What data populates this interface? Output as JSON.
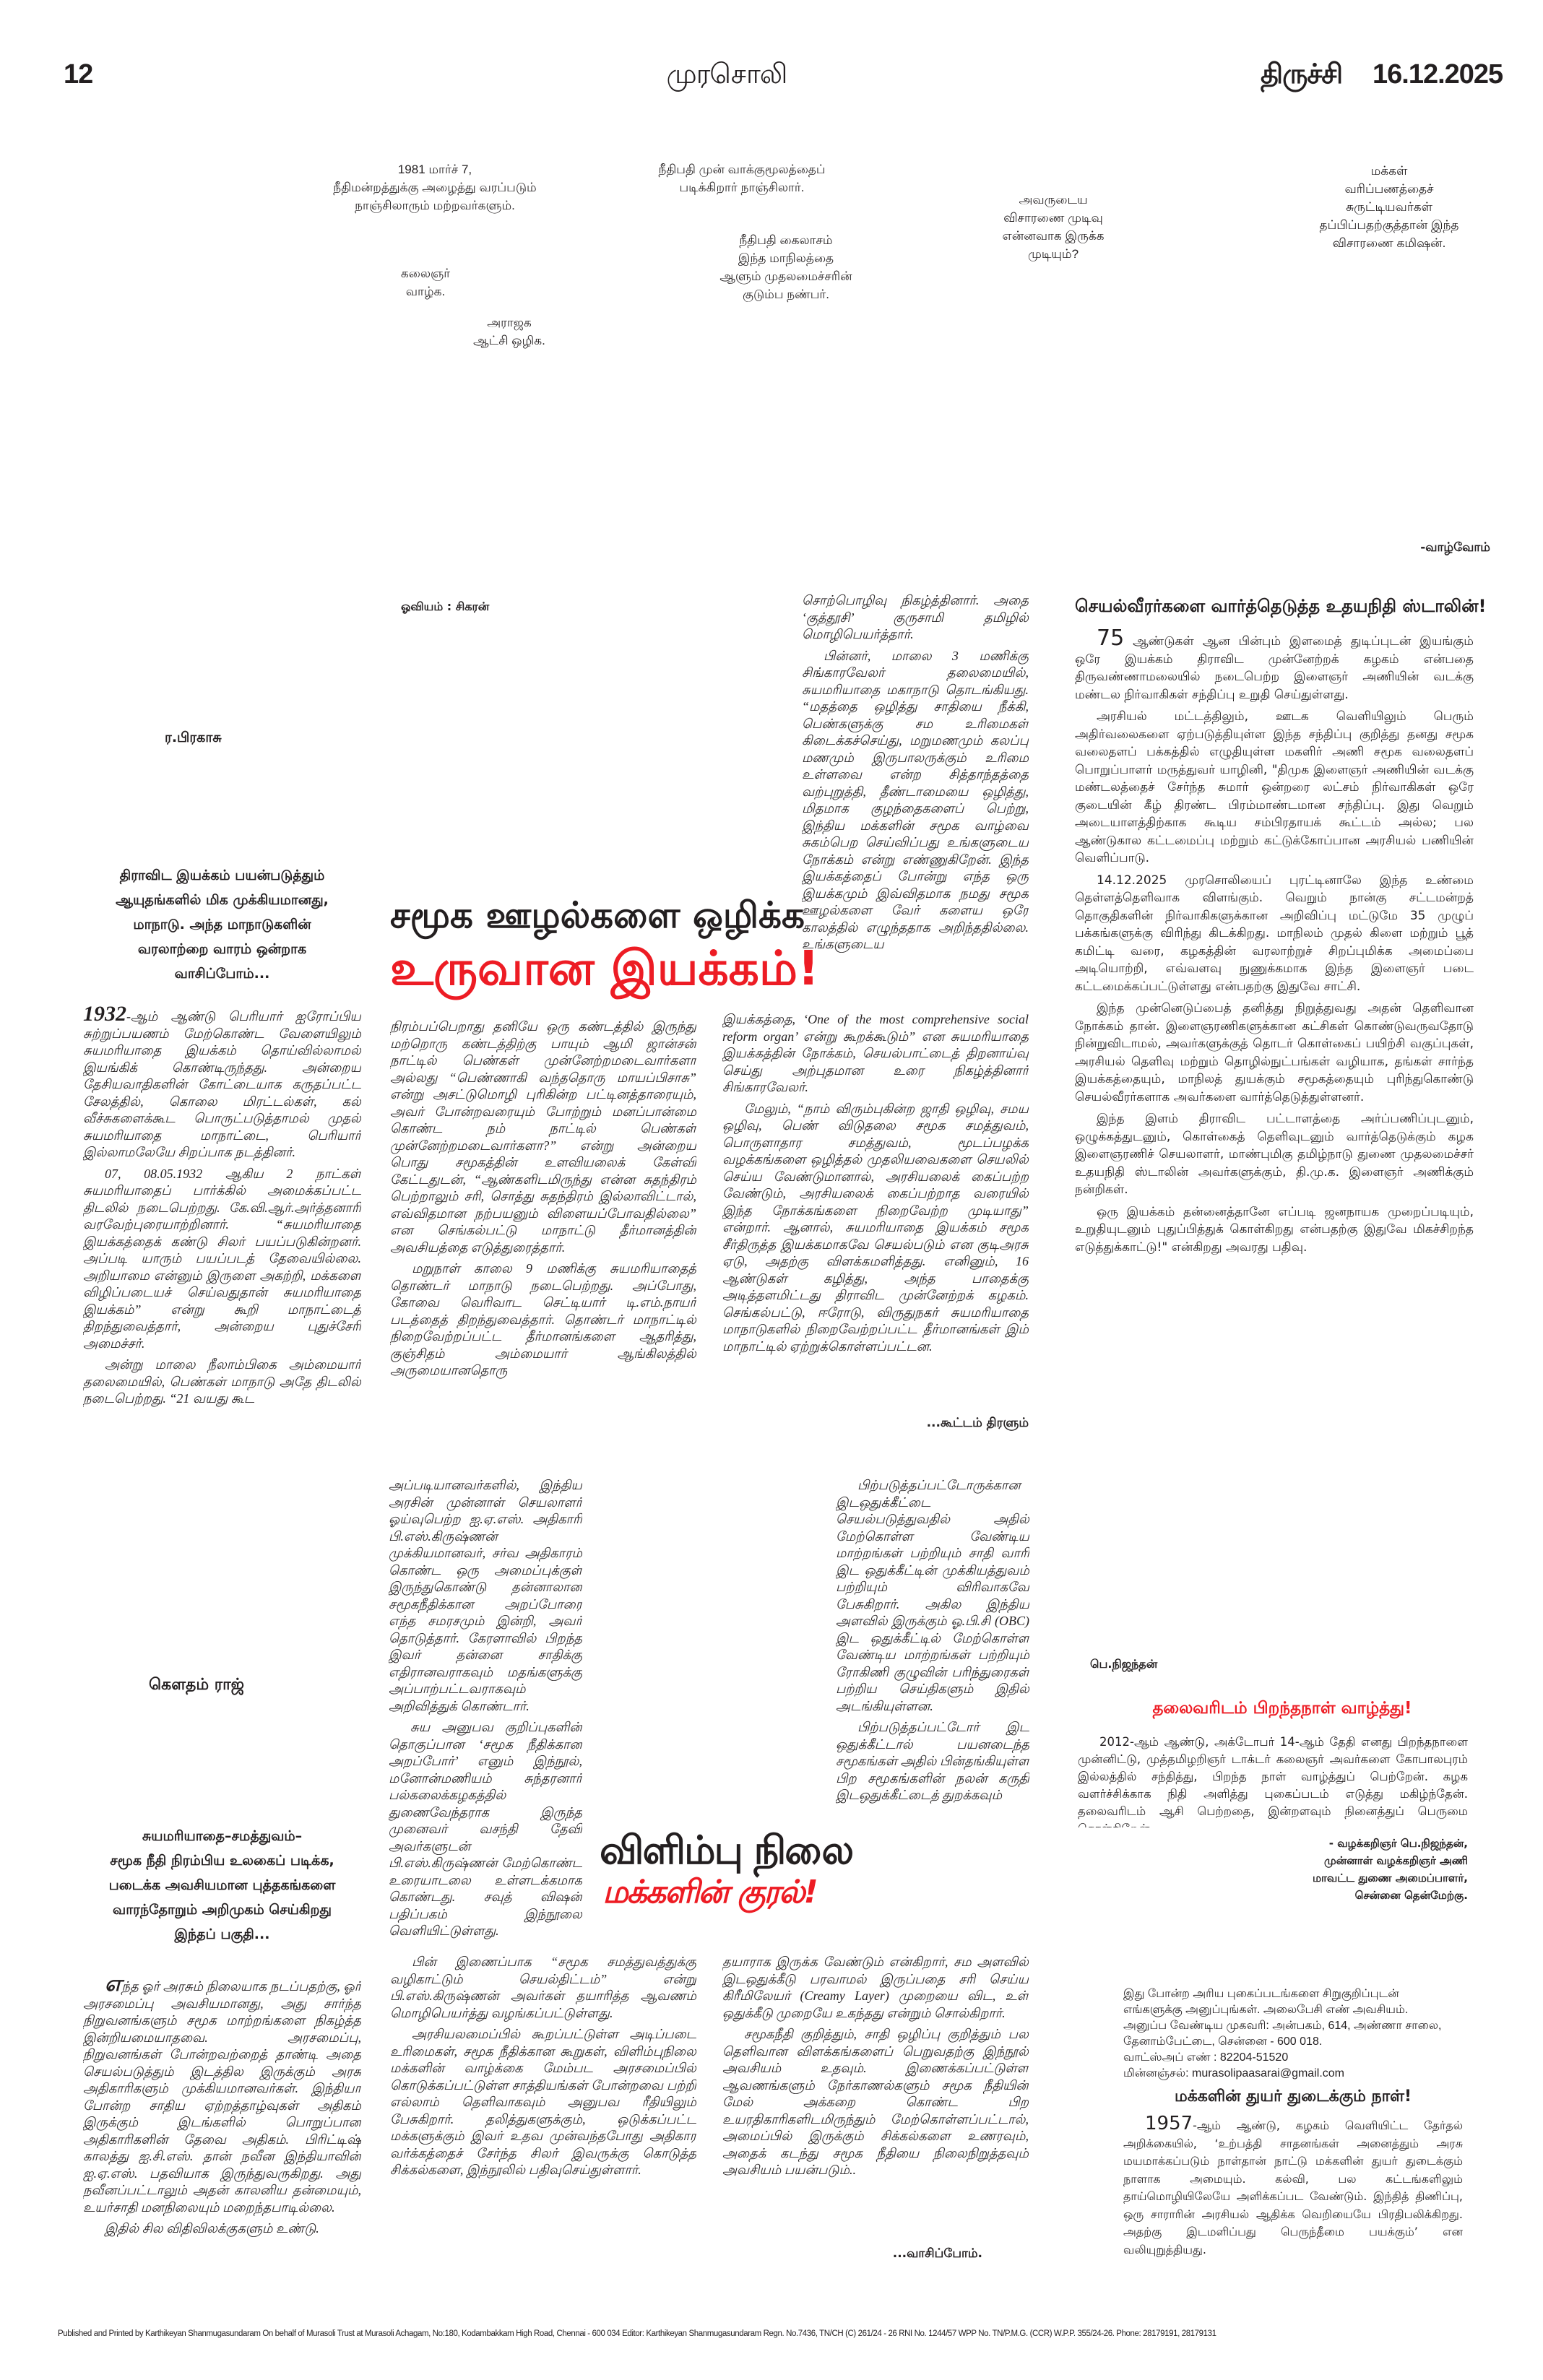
{
  "header": {
    "page_number": "12",
    "masthead": "முரசொலி",
    "edition": "திருச்சி",
    "date": "16.12.2025"
  },
  "cartoon": {
    "captions": [
      "1981 மார்ச் 7,\nநீதிமன்றத்துக்கு அழைத்து வரப்படும்\nநாஞ்சிலாரும் மற்றவர்களும்.",
      "நீதிபதி முன் வாக்குமூலத்தைப்\nபடிக்கிறார் நாஞ்சிலார்.",
      "அவருடைய\nவிசாரணை முடிவு\nஎன்னவாக இருக்க\nமுடியும்?",
      "மக்கள்\nவரிப்பணத்தைச்\nசுருட்டியவர்கள்\nதப்பிப்பதற்குத்தான் இந்த\nவிசாரணை கமிஷன்.",
      "நீதிபதி கைலாசம்\nஇந்த மாநிலத்தை\nஆளும் முதலமைச்சரின்\nகுடும்ப நண்பர்.",
      "கலைஞர்\nவாழ்க.",
      "அராஜக\nஆட்சி ஒழிக."
    ],
    "signoff": "-வாழ்வோம்"
  },
  "conference_article": {
    "illustration_credit": "ஓவியம் :  சிகரன்",
    "byline": "ர.பிரகாசு",
    "intro": "திராவிட இயக்கம் பயன்படுத்தும்\nஆயுதங்களில் மிக முக்கியமானது,\nமாநாடு. அந்த மாநாடுகளின்\nவரலாற்றை வாரம் ஒன்றாக\nவாசிப்போம்...",
    "headline_line1": "சமூக ஊழல்களை ஒழிக்க",
    "headline_line2": "உருவான இயக்கம்!",
    "col1_lead": "1932",
    "col1": [
      "-ஆம் ஆண்டு பெரியார் ஐரோப்பிய சுற்றுப்பயணம் மேற்கொண்ட வேளையிலும் சுயமரியாதை இயக்கம் தொய்வில்லாமல் இயங்கிக் கொண்டிருந்தது. அன்றைய தேசியவாதிகளின் கோட்டையாக கருதப்பட்ட சேலத்தில், கொலை மிரட்டல்கள், கல் வீச்சுகளைக்கூட பொருட்படுத்தாமல் முதல் சுயமரியாதை மாநாட்டை, பெரியார் இல்லாமலேயே சிறப்பாக நடத்தினர்.",
      "07, 08.05.1932 ஆகிய 2 நாட்கள் சுயமரியாதைப் பார்க்கில் அமைக்கப்பட்ட திடலில் நடைபெற்றது. கே.வி.ஆர்.அர்த்தனாரி வரவேற்புரையாற்றினார். “சுயமரியாதை இயக்கத்தைக் கண்டு சிலர் பயப்படுகின்றனர். அப்படி யாரும் பயப்படத் தேவையில்லை. அறியாமை என்னும் இருளை அகற்றி, மக்களை விழிப்படையச் செய்வதுதான் சுயமரியாதை இயக்கம்” என்று கூறி மாநாட்டைத் திறந்துவைத்தார், அன்றைய புதுச்சேரி அமைச்சர்.",
      "அன்று மாலை நீலாம்பிகை அம்மையார் தலைமையில், பெண்கள் மாநாடு அதே திடலில் நடைபெற்றது. “21 வயது கூட"
    ],
    "col_a": [
      "நிரம்பப்பெறாது தனியே ஒரு கண்டத்தில் இருந்து மற்றொரு கண்டத்திற்கு பாயும் ஆமி ஜான்சன் நாட்டில் பெண்கள் முன்னேற்றமடைவார்களா அல்லது “பெண்ணாகி வந்ததொரு மாயப்பிசாசு” என்று அசட்டுமொழி புரிகின்ற பட்டினத்தாரையும், அவர் போன்றவரையும் போற்றும் மனப்பான்மை கொண்ட நம் நாட்டில் பெண்கள் முன்னேற்றமடைவார்களா?” என்று அன்றைய பொது சமூகத்தின் உளவியலைக் கேள்வி கேட்டதுடன், “ஆண்களிடமிருந்து என்ன சுதந்திரம் பெற்றாலும் சரி, சொத்து சுதந்திரம் இல்லாவிட்டால், எவ்விதமான நற்பயனும் விளையப்போவதில்லை” என செங்கல்பட்டு மாநாட்டு தீர்மானத்தின் அவசியத்தை எடுத்துரைத்தார்.",
      "மறுநாள் காலை 9 மணிக்கு சுயமரியாதைத் தொண்டர் மாநாடு நடைபெற்றது. அப்போது, கோவை வெரிவாட செட்டியார் டி.எம்.நாயர் படத்தைத் திறந்துவைத்தார். தொண்டர் மாநாட்டில் நிறைவேற்றப்பட்ட தீர்மானங்களை ஆதரித்து, குஞ்சிதம் அம்மையார் ஆங்கிலத்தில் அருமையானதொரு"
    ],
    "col_b_top": [
      "சொற்பொழிவு நிகழ்த்தினார். அதை ‘குத்தூசி’ குருசாமி தமிழில் மொழிபெயர்த்தார்.",
      "பின்னர், மாலை 3 மணிக்கு சிங்காரவேலர் தலைமையில், சுயமரியாதை மகாநாடு தொடங்கியது. “மதத்தை ஒழித்து சாதியை நீக்கி, பெண்களுக்கு சம உரிமைகள் கிடைக்கச்செய்து, மறுமணமும் கலப்பு மணமும் இருபாலருக்கும் உரிமை உள்ளவை என்ற சித்தாந்தத்தை வற்புறுத்தி, தீண்டாமையை ஒழித்து, மிதமாக குழந்தைகளைப் பெற்று, இந்திய மக்களின் சமூக வாழ்வை சுகம்பெற செய்விப்பது உங்களுடைய நோக்கம் என்று எண்ணுகிறேன். இந்த இயக்கத்தைப் போன்று எந்த ஒரு இயக்கமும் இவ்விதமாக நமது சமூக ஊழல்களை வேர் களைய ஒரே காலத்தில் எழுந்ததாக அறிந்ததில்லை. உங்களுடைய"
    ],
    "col_b_bottom": [
      "இயக்கத்தை, ‘One of the most comprehensive social reform organ’ என்று கூறக்கூடும்” என சுயமரியாதை இயக்கத்தின் நோக்கம், செயல்பாட்டைத் திறனாய்வு செய்து அற்புதமான உரை நிகழ்த்தினார் சிங்காரவேலர்.",
      "மேலும், “நாம் விரும்புகின்ற ஜாதி ஒழிவு, சமய ஒழிவு, பெண் விடுதலை சமூக சமத்துவம், பொருளாதார சமத்துவம், மூடப்பழக்க வழக்கங்களை ஒழித்தல் முதலியவைகளை செயலில் செய்ய வேண்டுமானால், அரசியலைக் கைப்பற்ற வேண்டும், அரசியலைக் கைப்பற்றாத வரையில் இந்த நோக்கங்களை நிறைவேற்ற முடியாது” என்றார். ஆனால், சுயமரியாதை இயக்கம் சமூக சீர்திருத்த இயக்கமாகவே செயல்படும் என குடிஅரசு ஏடு, அதற்கு விளக்கமளித்தது. எனினும், 16 ஆண்டுகள் கழித்து, அந்த பாதைக்கு அடித்தளமிட்டது திராவிட முன்னேற்றக் கழகம். செங்கல்பட்டு, ஈரோடு, விருதுநகர் சுயமரியாதை மாநாடுகளில் நிறைவேற்றப்பட்ட தீர்மானங்கள் இம் மாநாட்டில் ஏற்றுக்கொள்ளப்பட்டன."
    ],
    "continuation": "...கூட்டம் திரளும்"
  },
  "youth_wing_article": {
    "headline": "செயல்வீரர்களை வார்த்தெடுத்த உதயநிதி ஸ்டாலின்!",
    "lead_number": "75",
    "paragraphs": [
      " ஆண்டுகள் ஆன பின்பும் இளமைத் துடிப்புடன் இயங்கும் ஒரே இயக்கம் திராவிட முன்னேற்றக் கழகம் என்பதை திருவண்ணாமலையில் நடைபெற்ற இளைஞர் அணியின் வடக்கு மண்டல நிர்வாகிகள் சந்திப்பு உறுதி செய்துள்ளது.",
      "அரசியல் மட்டத்திலும், ஊடக வெளியிலும் பெரும் அதிர்வலைகளை ஏற்படுத்தியுள்ள இந்த சந்திப்பு குறித்து தனது சமூக வலைதளப் பக்கத்தில் எழுதியுள்ள மகளிர் அணி சமூக வலைதளப் பொறுப்பாளர் மருத்துவர் யாழினி, \"திமுக இளைஞர் அணியின் வடக்கு மண்டலத்தைச் சேர்ந்த சுமார் ஒன்றரை லட்சம் நிர்வாகிகள் ஒரே குடையின் கீழ் திரண்ட பிரம்மாண்டமான சந்திப்பு. இது வெறும் அடையாளத்திற்காக கூடிய சம்பிரதாயக் கூட்டம் அல்ல; பல ஆண்டுகால கட்டமைப்பு மற்றும் கட்டுக்கோப்பான அரசியல் பணியின் வெளிப்பாடு.",
      "14.12.2025 முரசொலியைப் புரட்டினாலே இந்த உண்மை தெள்ளத்தெளிவாக விளங்கும். வெறும் நான்கு சட்டமன்றத் தொகுதிகளின் நிர்வாகிகளுக்கான அறிவிப்பு மட்டுமே 35 முழுப் பக்கங்களுக்கு விரிந்து கிடக்கிறது. மாநிலம் முதல் கிளை மற்றும் பூத் கமிட்டி வரை, கழகத்தின் வரலாற்றுச் சிறப்புமிக்க அமைப்பை அடியொற்றி, எவ்வளவு நுணுக்கமாக இந்த இளைஞர் படை கட்டமைக்கப்பட்டுள்ளது என்பதற்கு இதுவே சாட்சி.",
      "இந்த முன்னெடுப்பைத் தனித்து நிறுத்துவது அதன் தெளிவான நோக்கம் தான். இளைஞரணிகளுக்கான கட்சிகள் கொண்டுவருவதோடு நின்றுவிடாமல், அவர்களுக்குத் தொடர் கொள்கைப் பயிற்சி வகுப்புகள், அரசியல் தெளிவு மற்றும் தொழில்நுட்பங்கள் வழியாக, தங்கள் சார்ந்த இயக்கத்தையும், மாநிலத் துயக்கும் சமூகத்தையும் புரிந்துகொண்டு செயல்வீரர்களாக அவர்களை வார்த்தெடுத்துள்ளனர்.",
      "இந்த இளம் திராவிட பட்டாளத்தை அர்ப்பணிப்புடனும், ஒழுக்கத்துடனும், கொள்கைத் தெளிவுடனும் வார்த்தெடுக்கும் கழக இளைஞரணிச் செயலாளர், மாண்புமிகு தமிழ்நாடு துணை முதலமைச்சர் உதயநிதி ஸ்டாலின் அவர்களுக்கும், தி.மு.க. இளைஞர் அணிக்கும் நன்றிகள்.",
      "ஒரு இயக்கம் தன்னைத்தானே எப்படி ஜனநாயக முறைப்படியும், உறுதியுடனும் புதுப்பித்துக் கொள்கிறது என்பதற்கு இதுவே மிகச்சிறந்த எடுத்துக்காட்டு!\" என்கிறது அவரது பதிவு."
    ]
  },
  "book_review": {
    "byline": "கௌதம்  ராஜ்",
    "intro": "சுயமரியாதை–சமத்துவம்–\nசமூக நீதி நிரம்பிய உலகைப் படிக்க,\nபடைக்க அவசியமான புத்தகங்களை\nவாரந்தோறும் அறிமுகம் செய்கிறது\nஇந்தப் பகுதி...",
    "headline_line1": "விளிம்பு நிலை",
    "headline_line2": "மக்களின் குரல்!",
    "col1_lead": "எ",
    "col1": [
      "ந்த ஓர் அரசும் நிலையாக நடப்பதற்கு, ஓர் அரசமைப்பு அவசியமானது, அது சார்ந்த நிறுவனங்களும் சமூக மாற்றங்களை நிகழ்த்த இன்றியமையாதவை. அரசமைப்பு, நிறுவனங்கள் போன்றவற்றைத் தாண்டி அதை செயல்படுத்தும் இடத்தில இருக்கும் அரசு அதிகாரிகளும் முக்கியமானவர்கள். இந்தியா போன்ற சாதிய ஏற்றத்தாழ்வுகள் அதிகம் இருக்கும் இடங்களில் பொறுப்பான அதிகாரிகளின் தேவை அதிகம். பிரிட்டிஷ் காலத்து ஐ.சி.எஸ். தான் நவீன இந்தியாவின் ஐ.ஏ.எஸ். பதவியாக இருந்துவருகிறது. அது நவீனப்பட்டாலும் அதன் காலனிய தன்மையும், உயர்சாதி மனநிலையும் மறைந்தபாடில்லை.",
      "இதில் சில விதிவிலக்குகளும் உண்டு."
    ],
    "col_a_top": [
      "அப்படியானவர்களில், இந்திய அரசின் முன்னாள் செயலாளர் ஓய்வுபெற்ற ஐ.ஏ.எஸ். அதிகாரி பி.எஸ்.கிருஷ்ணன் முக்கியமானவர், சர்வ அதிகாரம் கொண்ட ஒரு அமைப்புக்குள் இருந்துகொண்டு தன்னாலான சமூகநீதிக்கான அறப்போரை எந்த சமரசமும் இன்றி, அவர் தொடுத்தார். கேரளாவில் பிறந்த இவர் தன்னை சாதிக்கு எதிரானவராகவும் மதங்களுக்கு அப்பாற்பட்டவராகவும் அறிவித்துக் கொண்டார்.",
      "சுய அனுபவ குறிப்புகளின் தொகுப்பான ‘சமூக நீதிக்கான அறப்போர்’ எனும் இந்நூல், மனோன்மணியம் சுந்தரனார் பல்கலைக்கழகத்தில் துணைவேந்தராக இருந்த முனைவர் வசந்தி தேவி அவர்களுடன் பி.எஸ்.கிருஷ்ணன் மேற்கொண்ட உரையாடலை உள்ளடக்கமாக கொண்டது. சவுத் விஷன் பதிப்பகம் இந்நூலை வெளியிட்டுள்ளது."
    ],
    "col_a_bottom": [
      "பின் இணைப்பாக “சமூக சமத்துவத்துக்கு வழிகாட்டும் செயல்திட்டம்” என்று பி.எஸ்.கிருஷ்ணன் அவர்கள் தயாரித்த ஆவணம் மொழிபெயர்த்து வழங்கப்பட்டுள்ளது.",
      "அரசியலமைப்பில் கூறப்பட்டுள்ள அடிப்படை உரிமைகள், சமூக நீதிக்கான கூறுகள், விளிம்புநிலை மக்களின் வாழ்க்கை மேம்பட அரசமைப்பில் கொடுக்கப்பட்டுள்ள சாத்தியங்கள் போன்றவை பற்றி எல்லாம் தெளிவாகவும் அனுபவ ரீதியிலும் பேசுகிறார். தலித்துகளுக்கும், ஒடுக்கப்பட்ட மக்களுக்கும் இவர் உதவ முன்வந்தபோது அதிகார வர்க்கத்தைச் சேர்ந்த சிலர் இவருக்கு கொடுத்த சிக்கல்களை, இந்நூலில் பதிவுசெய்துள்ளார்."
    ],
    "col_b_top": [
      "பிற்படுத்தப்பட்டோருக்கான இடஒதுக்கீட்டை செயல்படுத்துவதில் அதில் மேற்கொள்ள வேண்டிய மாற்றங்கள் பற்றியும் சாதி வாரி இட ஒதுக்கீட்டின் முக்கியத்துவம் பற்றியும் விரிவாகவே பேசுகிறார். அகில இந்திய அளவில் இருக்கும் ஓ.பி.சி (OBC) இட ஒதுக்கீட்டில் மேற்கொள்ள வேண்டிய மாற்றங்கள் பற்றியும் ரோகிணி குழுவின் பரிந்துரைகள் பற்றிய செய்திகளும் இதில் அடங்கியுள்ளன.",
      "பிற்படுத்தப்பட்டோர் இட ஒதுக்கீட்டால் பயனடைந்த சமூகங்கள் அதில் பின்தங்கியுள்ள பிற சமூகங்களின் நலன் கருதி இடஒதுக்கீட்டைத் துறக்கவும்"
    ],
    "col_b_bottom": [
      "தயாராக இருக்க வேண்டும் என்கிறார், சம அளவில் இடஒதுக்கீடு பரவாமல் இருப்பதை சரி செய்ய கிரீமிலேயர் (Creamy Layer) முறையை விட, உள் ஒதுக்கீடு முறையே உகந்தது என்றும் சொல்கிறார்.",
      "சமூகநீதி குறித்தும், சாதி ஒழிப்பு குறித்தும் பல தெளிவான விளக்கங்களைப் பெறுவதற்கு இந்நூல் அவசியம் உதவும். இணைக்கப்பட்டுள்ள ஆவணங்களும் நேர்காணல்களும் சமூக நீதியின் மேல் அக்கறை கொண்ட பிற உயரதிகாரிகளிடமிருந்தும் மேற்கொள்ளப்பட்டால், அமைப்பில் இருக்கும் சிக்கல்களை உணரவும், அதைக் கடந்து சமூக நீதியை நிலைநிறுத்தவும் அவசியம் பயன்படும்.."
    ],
    "continuation": "...வாசிப்போம்."
  },
  "birthday_memory": {
    "byline": "பெ.நிஜந்தன்",
    "headline": "தலைவரிடம் பிறந்தநாள் வாழ்த்து!",
    "body": "2012-ஆம் ஆண்டு, அக்டோபர் 14-ஆம் தேதி எனது பிறந்தநாளை முன்னிட்டு, முத்தமிழறிஞர் டாக்டர் கலைஞர் அவர்களை கோபாலபுரம் இல்லத்தில் சந்தித்து, பிறந்த நாள் வாழ்த்துப் பெற்றேன். கழக வளர்ச்சிக்காக நிதி அளித்து புகைப்படம் எடுத்து மகிழ்ந்தேன். தலைவரிடம் ஆசி பெற்றதை, இன்றளவும் நினைத்துப் பெருமை கொள்கிறேன்.",
    "signature": [
      "- வழக்கறிஞர் பெ.நிஜந்தன்,",
      "முன்னாள் வழக்கறிஞர் அணி",
      "மாவட்ட துணை அமைப்பாளர்,",
      "சென்னை தென்மேற்கு."
    ],
    "submission_info": [
      "இது போன்ற அரிய புகைப்படங்களை சிறுகுறிப்புடன்",
      "எங்களுக்கு அனுப்புங்கள். அலைபேசி எண் அவசியம்.",
      "அனுப்ப வேண்டிய முகவரி: அன்பகம், 614, அண்ணா சாலை,",
      "தேனாம்பேட்டை, சென்னை - 600 018.",
      "வாட்ஸ்அப் எண் : 82204-51520",
      "மின்னஞ்சல்: murasolipaasarai@gmail.com"
    ]
  },
  "manifesto_note": {
    "headline": "மக்களின் துயர் துடைக்கும் நாள்!",
    "lead_number": "1957",
    "body": "-ஆம் ஆண்டு, கழகம் வெளியிட்ட தேர்தல் அறிக்கையில், ‘உற்பத்தி சாதனங்கள் அனைத்தும் அரசு மயமாக்கப்படும் நாள்தான் நாட்டு மக்களின் துயர் துடைக்கும் நாளாக அமையும். கல்வி, பல கட்டங்களிலும் தாய்மொழியிலேயே அளிக்கப்பட வேண்டும். இந்தித் திணிப்பு, ஒரு சாராரின் அரசியல் ஆதிக்க வெறியையே பிரதிபலிக்கிறது. அதற்கு இடமளிப்பது பெருந்தீமை பயக்கும்’ என வலியுறுத்தியது."
  },
  "footer": {
    "imprint": "Published and Printed by Karthikeyan Shanmugasundaram On behalf of Murasoli Trust at Murasoli Achagam, No:180, Kodambakkam High Road, Chennai - 600 034 Editor: Karthikeyan Shanmugasundaram Regn. No.7436, TN/CH (C) 261/24 - 26 RNI No. 1244/57 WPP No. TN/P.M.G. (CCR) W.P.P. 355/24-26. Phone: 28179191, 28179131"
  },
  "colors": {
    "text": "#231f20",
    "headline_red": "#ed1c24"
  }
}
